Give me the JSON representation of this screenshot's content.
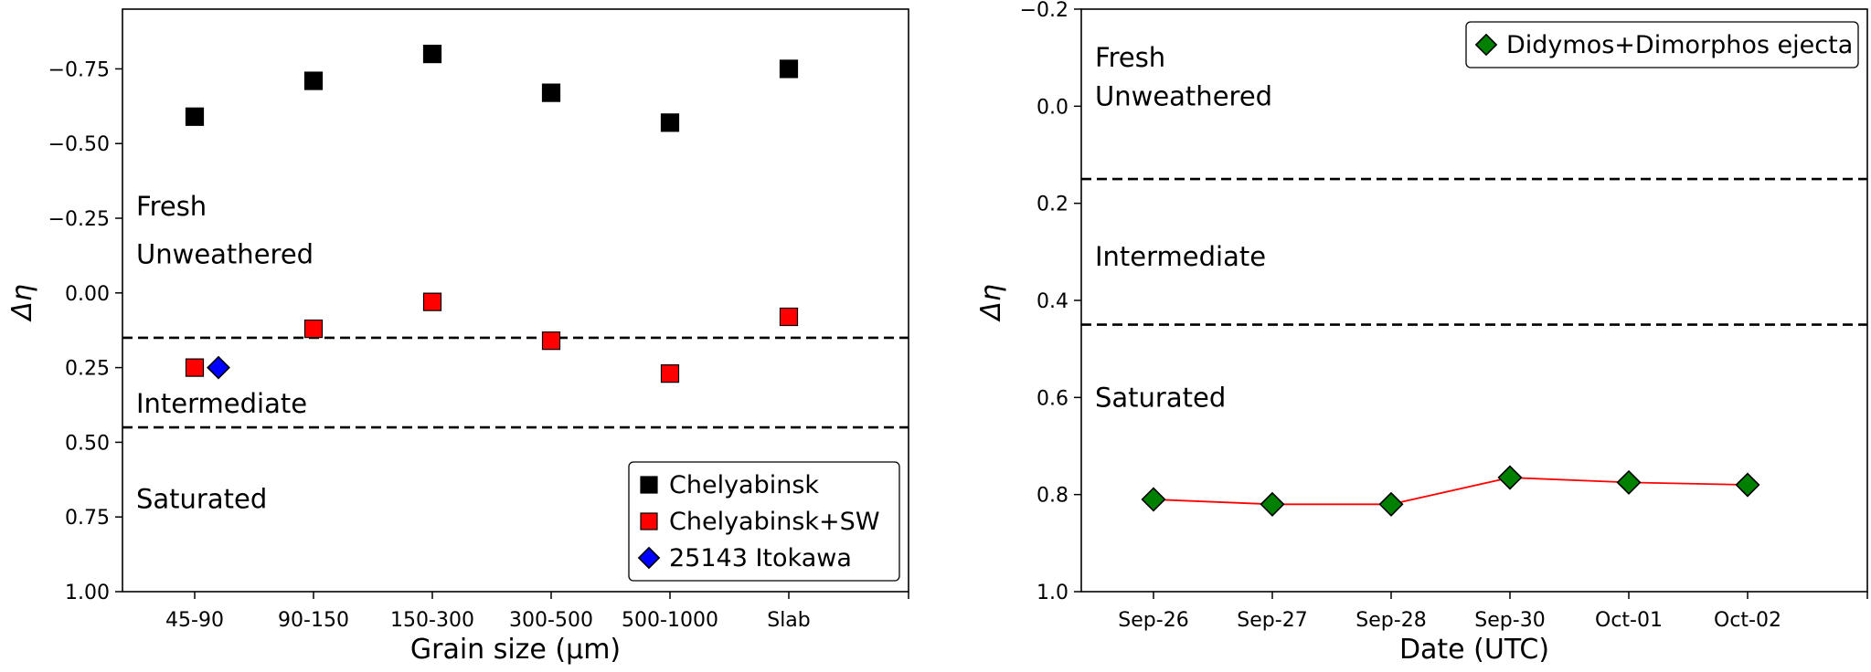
{
  "chart_data": [
    {
      "type": "scatter",
      "xlabel": "Grain size (μm)",
      "ylabel": "Δη",
      "ylim": [
        1.0,
        -0.95
      ],
      "y_inverted": true,
      "categories": [
        "45-90",
        "90-150",
        "150-300",
        "300-500",
        "500-1000",
        "Slab"
      ],
      "yticks": [
        -0.75,
        -0.5,
        -0.25,
        0.0,
        0.25,
        0.5,
        0.75,
        1.0
      ],
      "ytick_labels": [
        "−0.75",
        "−0.50",
        "−0.25",
        "0.00",
        "0.25",
        "0.50",
        "0.75",
        "1.00"
      ],
      "series": [
        {
          "name": "Chelyabinsk",
          "marker": "square",
          "color": "#000000",
          "points": [
            {
              "x": "45-90",
              "y": -0.59
            },
            {
              "x": "90-150",
              "y": -0.71
            },
            {
              "x": "150-300",
              "y": -0.8
            },
            {
              "x": "300-500",
              "y": -0.67
            },
            {
              "x": "500-1000",
              "y": -0.57
            },
            {
              "x": "Slab",
              "y": -0.75
            }
          ]
        },
        {
          "name": "Chelyabinsk+SW",
          "marker": "square",
          "color": "#ff0000",
          "points": [
            {
              "x": "45-90",
              "y": 0.25
            },
            {
              "x": "90-150",
              "y": 0.12
            },
            {
              "x": "150-300",
              "y": 0.03
            },
            {
              "x": "300-500",
              "y": 0.16
            },
            {
              "x": "500-1000",
              "y": 0.27
            },
            {
              "x": "Slab",
              "y": 0.08
            }
          ]
        },
        {
          "name": "25143 Itokawa",
          "marker": "diamond",
          "color": "#0000ff",
          "points": [
            {
              "x": "45-90",
              "offset": 0.2,
              "y": 0.25
            }
          ]
        }
      ],
      "thresholds": [
        0.15,
        0.45
      ],
      "regions": [
        {
          "label": "Fresh",
          "y": -0.29
        },
        {
          "label": "Unweathered",
          "y": -0.13
        },
        {
          "label": "Intermediate",
          "y": 0.37
        },
        {
          "label": "Saturated",
          "y": 0.69
        }
      ],
      "legend": [
        "Chelyabinsk",
        "Chelyabinsk+SW",
        "25143 Itokawa"
      ],
      "legend_position": "lower-right"
    },
    {
      "type": "line",
      "xlabel": "Date (UTC)",
      "ylabel": "Δη",
      "ylim": [
        1.0,
        -0.2
      ],
      "y_inverted": true,
      "categories": [
        "Sep-26",
        "Sep-27",
        "Sep-28",
        "Sep-30",
        "Oct-01",
        "Oct-02"
      ],
      "yticks": [
        -0.2,
        0.0,
        0.2,
        0.4,
        0.6,
        0.8,
        1.0
      ],
      "ytick_labels": [
        "−0.2",
        "0.0",
        "0.2",
        "0.4",
        "0.6",
        "0.8",
        "1.0"
      ],
      "series": [
        {
          "name": "Didymos+Dimorphos ejecta",
          "marker": "diamond",
          "color": "#008000",
          "line_color": "#ff0000",
          "values": [
            0.81,
            0.82,
            0.82,
            0.765,
            0.775,
            0.78
          ]
        }
      ],
      "thresholds": [
        0.15,
        0.45
      ],
      "regions": [
        {
          "label": "Fresh",
          "y": -0.1
        },
        {
          "label": "Unweathered",
          "y": -0.02
        },
        {
          "label": "Intermediate",
          "y": 0.31
        },
        {
          "label": "Saturated",
          "y": 0.6
        }
      ],
      "legend": [
        "Didymos+Dimorphos ejecta"
      ],
      "legend_position": "upper-right"
    }
  ]
}
